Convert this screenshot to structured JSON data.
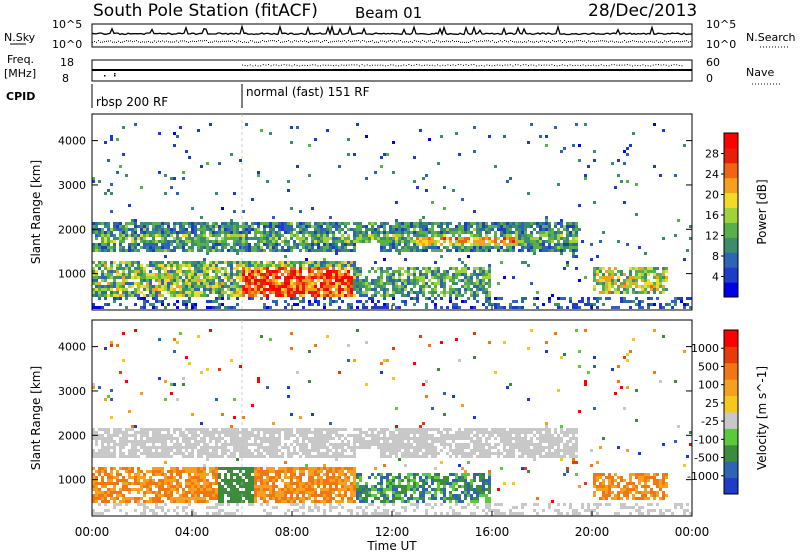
{
  "header": {
    "station": "South Pole Station (fitACF)",
    "beam": "Beam 01",
    "date": "28/Dec/2013"
  },
  "noise_panel": {
    "left_label": "N.Sky",
    "right_label": "N.Search",
    "left_ticks": [
      "10^5",
      "10^0"
    ],
    "right_ticks": [
      "10^5",
      "10^0"
    ]
  },
  "freq_panel": {
    "left_label_1": "Freq.",
    "left_label_2": "[MHz]",
    "right_label": "Nave",
    "left_ticks": [
      "18",
      "8"
    ],
    "right_ticks": [
      "60",
      "0"
    ]
  },
  "cpid": {
    "label": "CPID",
    "modes": [
      {
        "name": "rbsp 200 RF",
        "start_hour": 0
      },
      {
        "name": "normal (fast) 151 RF",
        "start_hour": 6
      }
    ]
  },
  "chart_data": [
    {
      "type": "heatmap",
      "title": "Power",
      "ylabel": "Slant Range [km]",
      "xlabel": "Time UT",
      "x_ticks": [
        "00:00",
        "04:00",
        "08:00",
        "12:00",
        "16:00",
        "20:00",
        "00:00"
      ],
      "xlim_hours": [
        0,
        24
      ],
      "y_ticks": [
        1000,
        2000,
        3000,
        4000
      ],
      "ylim": [
        180,
        4600
      ],
      "colorbar": {
        "label": "Power [dB]",
        "ticks": [
          "4",
          "8",
          "12",
          "16",
          "20",
          "24",
          "28"
        ],
        "range": [
          0,
          30
        ],
        "colors": [
          "#0000e6",
          "#1e3cc8",
          "#2e64b4",
          "#3c8c6e",
          "#58b04a",
          "#a0d23c",
          "#f0dc28",
          "#f5a01e",
          "#f06414",
          "#e61e0a",
          "#ff0000"
        ]
      },
      "echo_regions": [
        {
          "t_start": 0.0,
          "t_end": 10.0,
          "r_min": 1450,
          "r_max": 2150,
          "value": "6-14 dB"
        },
        {
          "t_start": 10.0,
          "t_end": 19.5,
          "r_min": 1550,
          "r_max": 2100,
          "value": "6-18 dB"
        },
        {
          "t_start": 0.0,
          "t_end": 6.0,
          "r_min": 700,
          "r_max": 1200,
          "value": "8-20 dB"
        },
        {
          "t_start": 6.0,
          "t_end": 10.5,
          "r_min": 400,
          "r_max": 1300,
          "value": "20-30 dB"
        },
        {
          "t_start": 10.5,
          "t_end": 16.0,
          "r_min": 500,
          "r_max": 1100,
          "value": "6-14 dB"
        },
        {
          "t_start": 20.0,
          "t_end": 23.0,
          "r_min": 550,
          "r_max": 1100,
          "value": "8-20 dB"
        }
      ]
    },
    {
      "type": "heatmap",
      "title": "Velocity",
      "ylabel": "Slant Range [km]",
      "xlabel": "Time UT",
      "x_ticks": [
        "00:00",
        "04:00",
        "08:00",
        "12:00",
        "16:00",
        "20:00",
        "00:00"
      ],
      "xlim_hours": [
        0,
        24
      ],
      "y_ticks": [
        1000,
        2000,
        3000,
        4000
      ],
      "ylim": [
        180,
        4600
      ],
      "colorbar": {
        "label": "Velocity [m s^-1]",
        "ticks": [
          "1000",
          "500",
          "100",
          "25",
          "-25",
          "-100",
          "-500",
          "-1000"
        ],
        "colors": [
          "#1e3cc8",
          "#2e64b4",
          "#3c8c3c",
          "#5cc83c",
          "#c8c8c8",
          "#f5c81e",
          "#f5a01e",
          "#f07814",
          "#e63c0a",
          "#ff0000"
        ]
      },
      "echo_regions": [
        {
          "t_start": 0.0,
          "t_end": 19.5,
          "r_min": 1450,
          "r_max": 2150,
          "value": "-25 to 25"
        },
        {
          "t_start": 0.0,
          "t_end": 10.5,
          "r_min": 400,
          "r_max": 1300,
          "value": "-100 to -500"
        },
        {
          "t_start": 10.5,
          "t_end": 16.0,
          "r_min": 500,
          "r_max": 1100,
          "value": "25 to 500"
        },
        {
          "t_start": 20.0,
          "t_end": 23.0,
          "r_min": 550,
          "r_max": 1100,
          "value": "-100 to -500"
        }
      ]
    }
  ],
  "axis_text": {
    "xlabel": "Time UT",
    "ylabel": "Slant Range [km]"
  }
}
